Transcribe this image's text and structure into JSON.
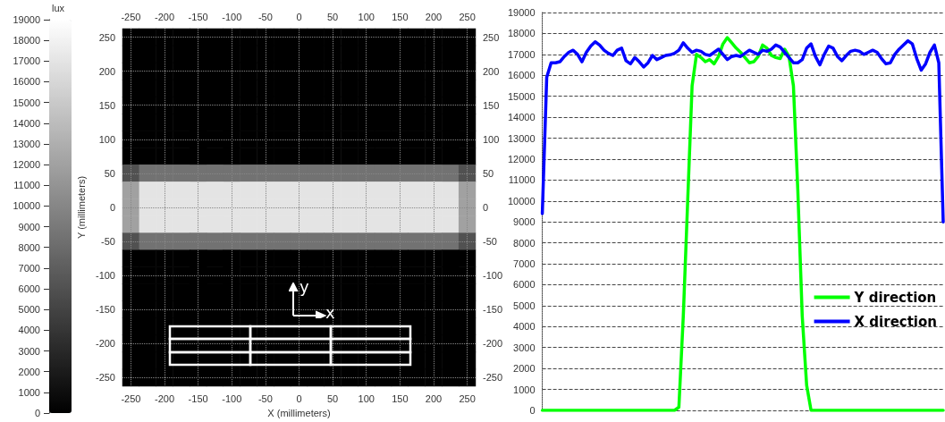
{
  "chart_data": [
    {
      "type": "heatmap",
      "clabel": "lux",
      "xlabel": "X (millimeters)",
      "ylabel": "Y (millimeters)",
      "grid": true,
      "clim": [
        0,
        19000
      ],
      "cticks": [
        0,
        1000,
        2000,
        3000,
        4000,
        5000,
        6000,
        7000,
        8000,
        9000,
        10000,
        11000,
        12000,
        13000,
        14000,
        15000,
        16000,
        17000,
        18000,
        19000
      ],
      "categories": [
        "-250",
        null,
        "-200",
        null,
        "-150",
        null,
        "-100",
        null,
        "-50",
        null,
        "0",
        null,
        "50",
        null,
        "100",
        null,
        "150",
        null,
        "200",
        null,
        "250"
      ],
      "y_categories": [
        "250",
        null,
        "200",
        null,
        "150",
        null,
        "100",
        null,
        "50",
        null,
        "0",
        null,
        "-50",
        null,
        "-100",
        null,
        "-150",
        null,
        "-200",
        null,
        "-250"
      ],
      "y2_categories": [
        "250",
        null,
        "200",
        null,
        "150",
        null,
        "100",
        null,
        "50",
        null,
        "0",
        null,
        "-50",
        null,
        "-100",
        null,
        "-150",
        null,
        "-200",
        null,
        "-250"
      ],
      "cells": [
        [
          0,
          0,
          0,
          0,
          0,
          0,
          0,
          0,
          0,
          0,
          0,
          0,
          0,
          0,
          0,
          0,
          0,
          0,
          0,
          0,
          0
        ],
        [
          0,
          0,
          0,
          0,
          0,
          0,
          0,
          0,
          0,
          0,
          0,
          0,
          0,
          0,
          0,
          0,
          0,
          0,
          0,
          0,
          0
        ],
        [
          0,
          0,
          0,
          0,
          0,
          0,
          0,
          0,
          0,
          0,
          0,
          0,
          0,
          0,
          0,
          0,
          0,
          0,
          0,
          0,
          0
        ],
        [
          0,
          0,
          0,
          0,
          0,
          0,
          0,
          0,
          0,
          0,
          0,
          0,
          0,
          0,
          0,
          0,
          0,
          0,
          0,
          0,
          0
        ],
        [
          0,
          0,
          0,
          0,
          0,
          0,
          0,
          0,
          0,
          0,
          0,
          0,
          0,
          0,
          0,
          0,
          0,
          0,
          0,
          0,
          0
        ],
        [
          0,
          0,
          0,
          0,
          0,
          0,
          0,
          0,
          0,
          0,
          0,
          0,
          0,
          0,
          0,
          0,
          0,
          0,
          0,
          0,
          0
        ],
        [
          0,
          0,
          0,
          0,
          0,
          0,
          0,
          0,
          0,
          0,
          0,
          0,
          0,
          0,
          0,
          0,
          0,
          0,
          0,
          0,
          0
        ],
        [
          0,
          0,
          0,
          0,
          0,
          0,
          0,
          0,
          0,
          0,
          0,
          0,
          0,
          0,
          0,
          0,
          0,
          0,
          0,
          0,
          0
        ],
        [
          6000,
          8500,
          8500,
          8500,
          8500,
          8500,
          8500,
          8500,
          8500,
          8500,
          8500,
          8500,
          8500,
          8500,
          8500,
          8500,
          8500,
          8500,
          8500,
          8500,
          6000
        ],
        [
          12000,
          17000,
          17000,
          17000,
          17000,
          17000,
          17000,
          17000,
          17000,
          17000,
          17000,
          17000,
          17000,
          17000,
          17000,
          17000,
          17000,
          17000,
          17000,
          17000,
          12000
        ],
        [
          12000,
          17000,
          17000,
          17000,
          17000,
          17000,
          17000,
          17000,
          17000,
          17000,
          17000,
          17000,
          17000,
          17000,
          17000,
          17000,
          17000,
          17000,
          17000,
          17000,
          12000
        ],
        [
          12000,
          17000,
          17000,
          17000,
          17000,
          17000,
          17000,
          17000,
          17000,
          17000,
          17000,
          17000,
          17000,
          17000,
          17000,
          17000,
          17000,
          17000,
          17000,
          17000,
          12000
        ],
        [
          6000,
          8500,
          8500,
          8500,
          8500,
          8500,
          8500,
          8500,
          8500,
          8500,
          8500,
          8500,
          8500,
          8500,
          8500,
          8500,
          8500,
          8500,
          8500,
          8500,
          6000
        ],
        [
          0,
          0,
          0,
          0,
          0,
          0,
          0,
          0,
          0,
          0,
          0,
          0,
          0,
          0,
          0,
          0,
          0,
          0,
          0,
          0,
          0
        ],
        [
          0,
          0,
          0,
          0,
          0,
          0,
          0,
          0,
          0,
          0,
          0,
          0,
          0,
          0,
          0,
          0,
          0,
          0,
          0,
          0,
          0
        ],
        [
          0,
          0,
          0,
          0,
          0,
          0,
          0,
          0,
          0,
          0,
          0,
          0,
          0,
          0,
          0,
          0,
          0,
          0,
          0,
          0,
          0
        ],
        [
          0,
          0,
          0,
          0,
          0,
          0,
          0,
          0,
          0,
          0,
          0,
          0,
          0,
          0,
          0,
          0,
          0,
          0,
          0,
          0,
          0
        ],
        [
          0,
          0,
          0,
          0,
          0,
          0,
          0,
          0,
          0,
          0,
          0,
          0,
          0,
          0,
          0,
          0,
          0,
          0,
          0,
          0,
          0
        ],
        [
          0,
          0,
          0,
          0,
          0,
          0,
          0,
          0,
          0,
          0,
          0,
          0,
          0,
          0,
          0,
          0,
          0,
          0,
          0,
          0,
          0
        ],
        [
          0,
          0,
          0,
          0,
          0,
          0,
          0,
          0,
          0,
          0,
          0,
          0,
          0,
          0,
          0,
          0,
          0,
          0,
          0,
          0,
          0
        ],
        [
          0,
          0,
          0,
          0,
          0,
          0,
          0,
          0,
          0,
          0,
          0,
          0,
          0,
          0,
          0,
          0,
          0,
          0,
          0,
          0,
          0
        ]
      ],
      "annotations": [
        "y",
        "x"
      ]
    },
    {
      "type": "line",
      "grid": "y",
      "legend": "bottom right",
      "line_style": "solid",
      "tick_labels": "y",
      "ylim": [
        0,
        19000
      ],
      "yticks": [
        0,
        1000,
        2000,
        3000,
        4000,
        5000,
        6000,
        7000,
        8000,
        9000,
        10000,
        11000,
        12000,
        13000,
        14000,
        15000,
        16000,
        17000,
        18000,
        19000
      ],
      "categories": [
        null,
        null,
        null,
        null,
        null,
        null,
        null,
        null,
        null,
        null,
        null,
        null,
        null,
        null,
        null,
        null,
        null,
        null,
        null,
        null,
        null,
        null,
        null,
        null,
        null,
        null,
        null,
        null,
        null,
        null,
        null,
        null,
        null,
        null,
        null,
        null,
        null,
        null,
        null,
        null,
        null,
        null,
        null,
        null,
        null,
        null,
        null,
        null,
        null,
        null,
        null,
        null,
        null,
        null,
        null,
        null,
        null,
        null,
        null,
        null,
        null,
        null,
        null,
        null,
        null,
        null,
        null,
        null,
        null,
        null,
        null,
        null,
        null,
        null,
        null,
        null,
        null,
        null,
        null,
        null,
        null,
        null,
        null,
        null,
        null,
        null,
        null,
        null,
        null,
        null,
        null,
        null
      ],
      "series": [
        {
          "name": "Y direction",
          "color": "#00ff00",
          "values": [
            0,
            0,
            0,
            0,
            0,
            0,
            0,
            0,
            0,
            0,
            0,
            0,
            0,
            0,
            0,
            0,
            0,
            0,
            0,
            0,
            0,
            0,
            0,
            0,
            0,
            0,
            0,
            0,
            0,
            0,
            0,
            150,
            4500,
            10000,
            15500,
            17000,
            16850,
            16650,
            16750,
            16550,
            16900,
            17500,
            17800,
            17550,
            17300,
            17100,
            16850,
            16600,
            16650,
            16900,
            17450,
            17300,
            16950,
            16850,
            16800,
            17250,
            16900,
            15500,
            10500,
            4500,
            1200,
            0,
            0,
            0,
            0,
            0,
            0,
            0,
            0,
            0,
            0,
            0,
            0,
            0,
            0,
            0,
            0,
            0,
            0,
            0,
            0,
            0,
            0,
            0,
            0,
            0,
            0,
            0,
            0,
            0,
            0,
            0
          ]
        },
        {
          "name": "X direction",
          "color": "#0000ff",
          "values": [
            9400,
            15900,
            16600,
            16600,
            16650,
            16900,
            17100,
            17200,
            17000,
            16650,
            17100,
            17400,
            17600,
            17450,
            17200,
            17050,
            16950,
            17200,
            17300,
            16700,
            16550,
            16850,
            16650,
            16400,
            16600,
            16950,
            16750,
            16850,
            16950,
            16980,
            17050,
            17200,
            17550,
            17300,
            17100,
            17200,
            17150,
            17000,
            16950,
            17100,
            17250,
            17000,
            16750,
            16900,
            16950,
            16900,
            17050,
            17200,
            17100,
            17000,
            17200,
            17150,
            17250,
            17450,
            17350,
            17100,
            16850,
            16600,
            16600,
            16750,
            17300,
            17500,
            16900,
            16500,
            17000,
            17400,
            17300,
            16900,
            16700,
            16950,
            17150,
            17200,
            17150,
            17000,
            17100,
            17200,
            17100,
            16800,
            16550,
            16600,
            17000,
            17250,
            17450,
            17650,
            17500,
            16800,
            16250,
            16550,
            17100,
            17450,
            16600,
            9000
          ]
        }
      ]
    }
  ]
}
